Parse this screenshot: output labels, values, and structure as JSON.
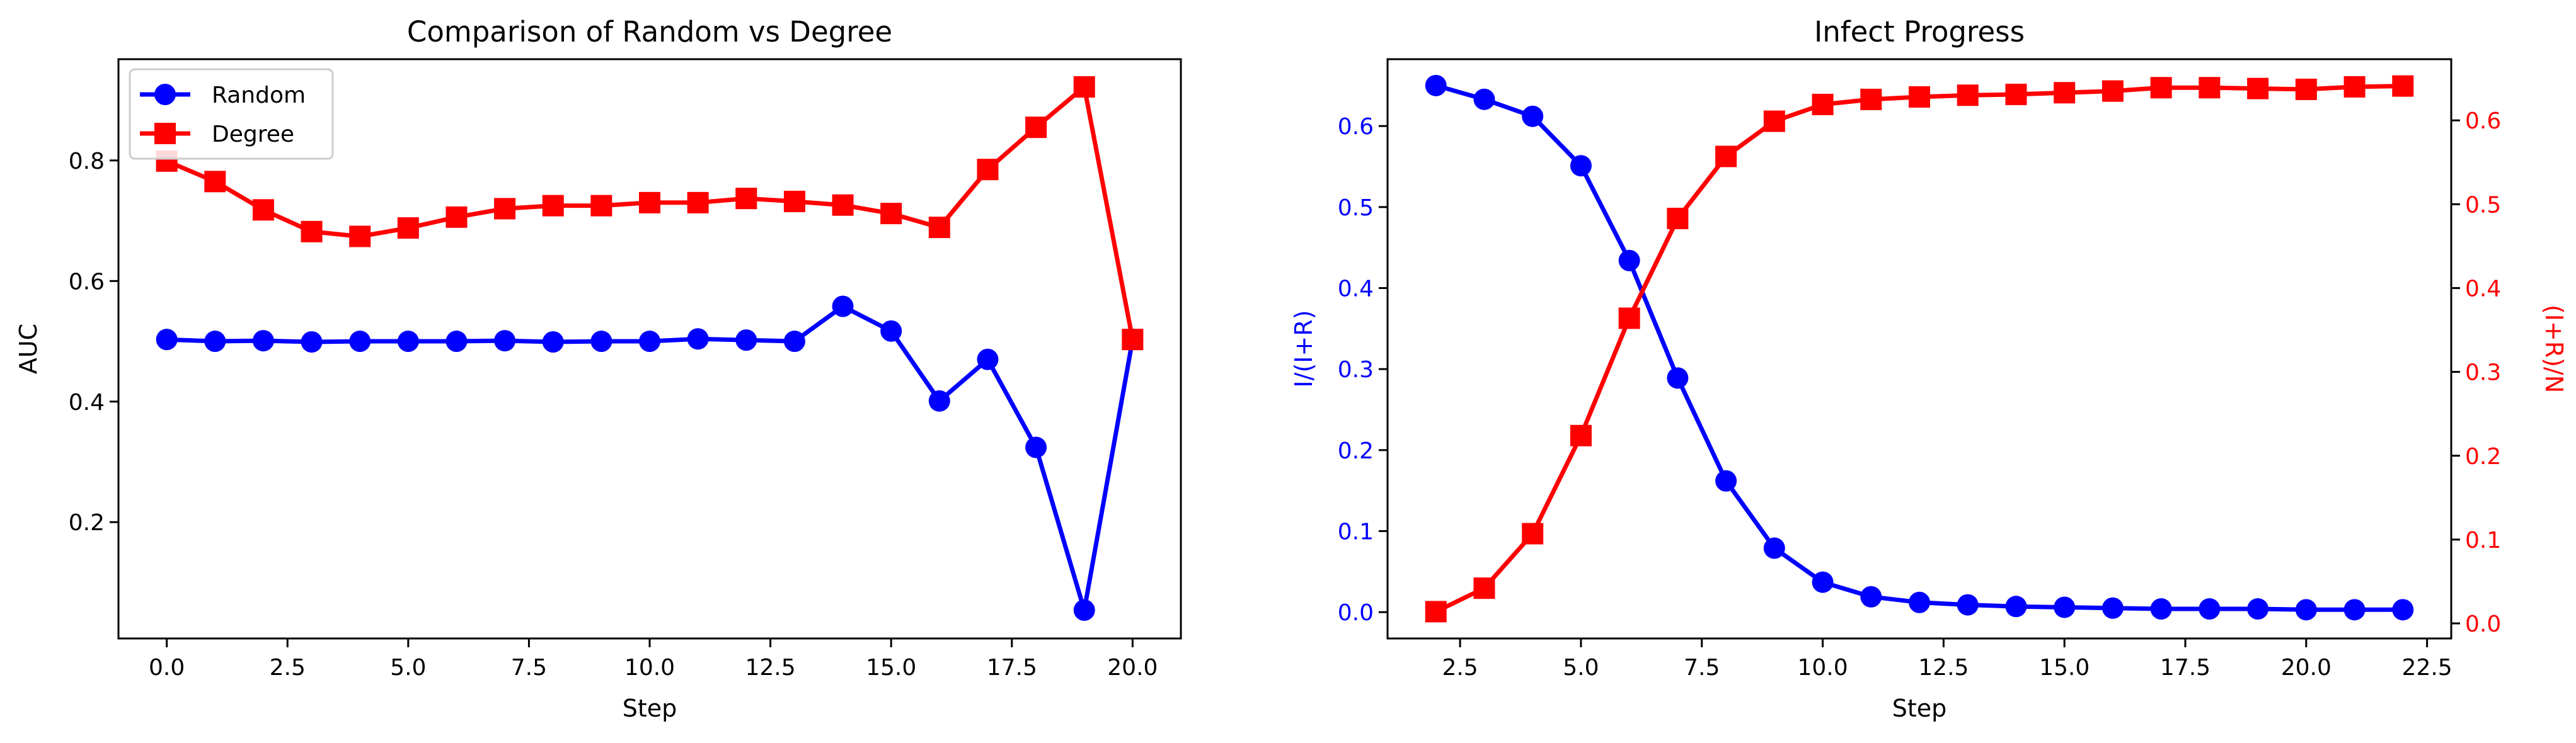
{
  "chart_data": [
    {
      "type": "line",
      "title": "Comparison of Random vs Degree",
      "xlabel": "Step",
      "ylabel": "AUC",
      "xlim": [
        -1.0,
        21.0
      ],
      "ylim": [
        0.007,
        0.968
      ],
      "xticks": [
        0.0,
        2.5,
        5.0,
        7.5,
        10.0,
        12.5,
        15.0,
        17.5,
        20.0
      ],
      "xtick_labels": [
        "0.0",
        "2.5",
        "5.0",
        "7.5",
        "10.0",
        "12.5",
        "15.0",
        "17.5",
        "20.0"
      ],
      "yticks": [
        0.2,
        0.4,
        0.6,
        0.8
      ],
      "ytick_labels": [
        "0.2",
        "0.4",
        "0.6",
        "0.8"
      ],
      "grid": false,
      "legend": "top-left",
      "x": [
        0,
        1,
        2,
        3,
        4,
        5,
        6,
        7,
        8,
        9,
        10,
        11,
        12,
        13,
        14,
        15,
        16,
        17,
        18,
        19,
        20
      ],
      "series": [
        {
          "name": "Random",
          "color": "#0000ff",
          "marker": "circle",
          "values": [
            0.503,
            0.5,
            0.501,
            0.499,
            0.5,
            0.5,
            0.5,
            0.501,
            0.499,
            0.5,
            0.5,
            0.504,
            0.502,
            0.5,
            0.558,
            0.517,
            0.401,
            0.47,
            0.324,
            0.054,
            0.503
          ]
        },
        {
          "name": "Degree",
          "color": "#ff0000",
          "marker": "square",
          "values": [
            0.799,
            0.765,
            0.718,
            0.682,
            0.674,
            0.688,
            0.706,
            0.72,
            0.725,
            0.725,
            0.73,
            0.73,
            0.737,
            0.732,
            0.726,
            0.712,
            0.689,
            0.785,
            0.855,
            0.922,
            0.503
          ]
        }
      ]
    },
    {
      "type": "line",
      "title": "Infect Progress",
      "xlabel": "Step",
      "xlim": [
        1.0,
        23.0
      ],
      "xticks": [
        2.5,
        5.0,
        7.5,
        10.0,
        12.5,
        15.0,
        17.5,
        20.0,
        22.5
      ],
      "xtick_labels": [
        "2.5",
        "5.0",
        "7.5",
        "10.0",
        "12.5",
        "15.0",
        "17.5",
        "20.0",
        "22.5"
      ],
      "grid": false,
      "x": [
        2,
        3,
        4,
        5,
        6,
        7,
        8,
        9,
        10,
        11,
        12,
        13,
        14,
        15,
        16,
        17,
        18,
        19,
        20,
        21,
        22
      ],
      "left_axis": {
        "label": "I/(I+R)",
        "color": "#0000ff",
        "lim": [
          -0.0325,
          0.6825
        ],
        "ticks": [
          0.0,
          0.1,
          0.2,
          0.3,
          0.4,
          0.5,
          0.6
        ],
        "tick_labels": [
          "0.0",
          "0.1",
          "0.2",
          "0.3",
          "0.4",
          "0.5",
          "0.6"
        ]
      },
      "right_axis": {
        "label": "(I+R)/N",
        "color": "#ff0000",
        "lim": [
          -0.018,
          0.673
        ],
        "ticks": [
          0.0,
          0.1,
          0.2,
          0.3,
          0.4,
          0.5,
          0.6
        ],
        "tick_labels": [
          "0.0",
          "0.1",
          "0.2",
          "0.3",
          "0.4",
          "0.5",
          "0.6"
        ]
      },
      "series": [
        {
          "axis": "left",
          "color": "#0000ff",
          "marker": "circle",
          "values": [
            0.65,
            0.633,
            0.612,
            0.551,
            0.434,
            0.289,
            0.162,
            0.079,
            0.037,
            0.019,
            0.012,
            0.009,
            0.007,
            0.006,
            0.005,
            0.004,
            0.004,
            0.004,
            0.003,
            0.003,
            0.003
          ]
        },
        {
          "axis": "right",
          "color": "#ff0000",
          "marker": "square",
          "values": [
            0.014,
            0.042,
            0.107,
            0.224,
            0.364,
            0.483,
            0.557,
            0.599,
            0.619,
            0.625,
            0.628,
            0.63,
            0.631,
            0.633,
            0.635,
            0.639,
            0.639,
            0.638,
            0.637,
            0.64,
            0.641
          ]
        }
      ]
    }
  ]
}
